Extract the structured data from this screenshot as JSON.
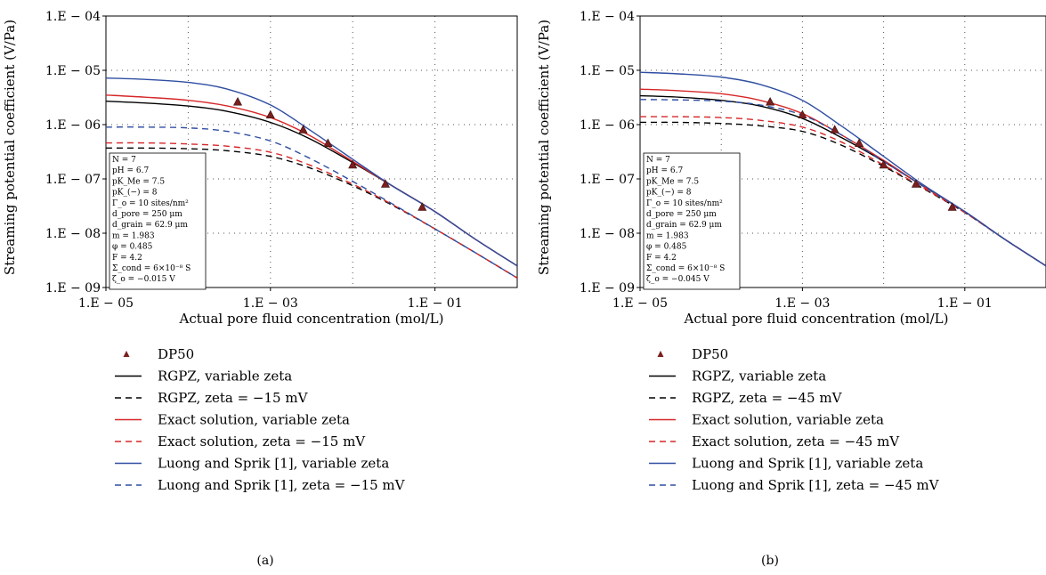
{
  "chart_data": [
    {
      "type": "line",
      "panel_label": "(a)",
      "xlabel": "Actual pore fluid concentration (mol/L)",
      "ylabel": "Streaming potential coefficient (V/Pa)",
      "x_scale": "log",
      "y_scale": "log",
      "xlim": [
        1e-05,
        1
      ],
      "ylim": [
        1e-09,
        0.0001
      ],
      "grid": "dotted",
      "x_ticks": [
        {
          "value": 1e-05,
          "label": "1.E − 05"
        },
        {
          "value": 0.001,
          "label": "1.E − 03"
        },
        {
          "value": 0.1,
          "label": "1.E − 01"
        }
      ],
      "y_ticks": [
        {
          "value": 1e-09,
          "label": "1.E − 09"
        },
        {
          "value": 1e-08,
          "label": "1.E − 08"
        },
        {
          "value": 1e-07,
          "label": "1.E − 07"
        },
        {
          "value": 1e-06,
          "label": "1.E − 06"
        },
        {
          "value": 1e-05,
          "label": "1.E − 05"
        },
        {
          "value": 0.0001,
          "label": "1.E − 04"
        }
      ],
      "info_box": [
        "N = 7",
        "pH = 6.7",
        "pK_Me = 7.5",
        "pK_(−) = 8",
        "Γ_o = 10 sites/nm²",
        "d_pore = 250 μm",
        "d_grain = 62.9 μm",
        "m = 1.983",
        "φ = 0.485",
        "F = 4.2",
        "Σ_cond = 6×10⁻⁸ S",
        "ζ_o = −0.015 V"
      ],
      "legend_position": "below",
      "series": [
        {
          "name": "DP50",
          "kind": "marker",
          "color": "#7a1f1f",
          "x": [
            0.0004,
            0.001,
            0.0025,
            0.005,
            0.01,
            0.025,
            0.07
          ],
          "y": [
            2.6e-06,
            1.5e-06,
            8e-07,
            4.5e-07,
            1.8e-07,
            8e-08,
            3e-08
          ]
        },
        {
          "name": "RGPZ, variable zeta",
          "kind": "line",
          "dash": "solid",
          "color": "#000000",
          "x": [
            1e-05,
            3e-05,
            0.0001,
            0.0003,
            0.001,
            0.003,
            0.01,
            0.03,
            0.1,
            0.3,
            1
          ],
          "y": [
            2.7e-06,
            2.5e-06,
            2.2e-06,
            1.75e-06,
            1.1e-06,
            5.5e-07,
            2e-07,
            7.5e-08,
            2.5e-08,
            8e-09,
            2.5e-09
          ]
        },
        {
          "name": "RGPZ, zeta = −15 mV",
          "kind": "line",
          "dash": "dashed",
          "color": "#000000",
          "x": [
            1e-05,
            3e-05,
            0.0001,
            0.0003,
            0.001,
            0.003,
            0.01,
            0.03,
            0.1,
            0.3,
            1
          ],
          "y": [
            3.7e-07,
            3.7e-07,
            3.6e-07,
            3.3e-07,
            2.6e-07,
            1.6e-07,
            7.5e-08,
            3.3e-08,
            1.2e-08,
            4.5e-09,
            1.5e-09
          ]
        },
        {
          "name": "Exact solution, variable zeta",
          "kind": "line",
          "dash": "solid",
          "color": "#d62728",
          "x": [
            1e-05,
            3e-05,
            0.0001,
            0.0003,
            0.001,
            0.003,
            0.01,
            0.03,
            0.1,
            0.3,
            1
          ],
          "y": [
            3.5e-06,
            3.2e-06,
            2.8e-06,
            2.2e-06,
            1.35e-06,
            6.3e-07,
            2.1e-07,
            7.5e-08,
            2.5e-08,
            8e-09,
            2.5e-09
          ]
        },
        {
          "name": "Exact solution, zeta = −15 mV",
          "kind": "line",
          "dash": "dashed",
          "color": "#d62728",
          "x": [
            1e-05,
            3e-05,
            0.0001,
            0.0003,
            0.001,
            0.003,
            0.01,
            0.03,
            0.1,
            0.3,
            1
          ],
          "y": [
            4.6e-07,
            4.6e-07,
            4.4e-07,
            4e-07,
            3.1e-07,
            1.8e-07,
            8e-08,
            3.4e-08,
            1.2e-08,
            4.5e-09,
            1.5e-09
          ]
        },
        {
          "name": "Luong and Sprik [1], variable zeta",
          "kind": "line",
          "dash": "solid",
          "color": "#2f4ea1",
          "x": [
            1e-05,
            3e-05,
            0.0001,
            0.0003,
            0.001,
            0.003,
            0.01,
            0.03,
            0.1,
            0.3,
            1
          ],
          "y": [
            7.2e-06,
            6.8e-06,
            6e-06,
            4.5e-06,
            2.3e-06,
            8e-07,
            2.3e-07,
            7.5e-08,
            2.5e-08,
            8e-09,
            2.5e-09
          ]
        },
        {
          "name": "Luong and Sprik [1], zeta = −15 mV",
          "kind": "line",
          "dash": "dashed",
          "color": "#2f4ea1",
          "x": [
            1e-05,
            3e-05,
            0.0001,
            0.0003,
            0.001,
            0.003,
            0.01,
            0.03,
            0.1,
            0.3,
            1
          ],
          "y": [
            9e-07,
            9e-07,
            8.7e-07,
            7.5e-07,
            5e-07,
            2.4e-07,
            9e-08,
            3.5e-08,
            1.2e-08,
            4.5e-09,
            1.5e-09
          ]
        }
      ]
    },
    {
      "type": "line",
      "panel_label": "(b)",
      "xlabel": "Actual pore fluid concentration (mol/L)",
      "ylabel": "Streaming potential coefficient (V/Pa)",
      "x_scale": "log",
      "y_scale": "log",
      "xlim": [
        1e-05,
        1
      ],
      "ylim": [
        1e-09,
        0.0001
      ],
      "grid": "dotted",
      "x_ticks": [
        {
          "value": 1e-05,
          "label": "1.E − 05"
        },
        {
          "value": 0.001,
          "label": "1.E − 03"
        },
        {
          "value": 0.1,
          "label": "1.E − 01"
        }
      ],
      "y_ticks": [
        {
          "value": 1e-09,
          "label": "1.E − 09"
        },
        {
          "value": 1e-08,
          "label": "1.E − 08"
        },
        {
          "value": 1e-07,
          "label": "1.E − 07"
        },
        {
          "value": 1e-06,
          "label": "1.E − 06"
        },
        {
          "value": 1e-05,
          "label": "1.E − 05"
        },
        {
          "value": 0.0001,
          "label": "1.E − 04"
        }
      ],
      "info_box": [
        "N = 7",
        "pH = 6.7",
        "pK_Me = 7.5",
        "pK_(−) = 8",
        "Γ_o = 10 sites/nm²",
        "d_pore = 250 μm",
        "d_grain = 62.9 μm",
        "m = 1.983",
        "φ = 0.485",
        "F = 4.2",
        "Σ_cond = 6×10⁻⁸ S",
        "ζ_o = −0.045 V"
      ],
      "legend_position": "below",
      "series": [
        {
          "name": "DP50",
          "kind": "marker",
          "color": "#7a1f1f",
          "x": [
            0.0004,
            0.001,
            0.0025,
            0.005,
            0.01,
            0.025,
            0.07
          ],
          "y": [
            2.6e-06,
            1.5e-06,
            8e-07,
            4.5e-07,
            1.8e-07,
            8e-08,
            3e-08
          ]
        },
        {
          "name": "RGPZ, variable zeta",
          "kind": "line",
          "dash": "solid",
          "color": "#000000",
          "x": [
            1e-05,
            3e-05,
            0.0001,
            0.0003,
            0.001,
            0.003,
            0.01,
            0.03,
            0.1,
            0.3,
            1
          ],
          "y": [
            3.4e-06,
            3.2e-06,
            2.8e-06,
            2.2e-06,
            1.3e-06,
            5.8e-07,
            2.1e-07,
            7.5e-08,
            2.5e-08,
            8e-09,
            2.5e-09
          ]
        },
        {
          "name": "RGPZ, zeta = −45 mV",
          "kind": "line",
          "dash": "dashed",
          "color": "#000000",
          "x": [
            1e-05,
            3e-05,
            0.0001,
            0.0003,
            0.001,
            0.003,
            0.01,
            0.03,
            0.1,
            0.3,
            1
          ],
          "y": [
            1.1e-06,
            1.1e-06,
            1.05e-06,
            9.5e-07,
            7.5e-07,
            4.2e-07,
            1.7e-07,
            6.8e-08,
            2.4e-08,
            8e-09,
            2.5e-09
          ]
        },
        {
          "name": "Exact solution, variable zeta",
          "kind": "line",
          "dash": "solid",
          "color": "#d62728",
          "x": [
            1e-05,
            3e-05,
            0.0001,
            0.0003,
            0.001,
            0.003,
            0.01,
            0.03,
            0.1,
            0.3,
            1
          ],
          "y": [
            4.5e-06,
            4.2e-06,
            3.7e-06,
            2.8e-06,
            1.6e-06,
            6.5e-07,
            2.2e-07,
            7.5e-08,
            2.5e-08,
            8e-09,
            2.5e-09
          ]
        },
        {
          "name": "Exact solution, zeta = −45 mV",
          "kind": "line",
          "dash": "dashed",
          "color": "#d62728",
          "x": [
            1e-05,
            3e-05,
            0.0001,
            0.0003,
            0.001,
            0.003,
            0.01,
            0.03,
            0.1,
            0.3,
            1
          ],
          "y": [
            1.4e-06,
            1.4e-06,
            1.35e-06,
            1.2e-06,
            9e-07,
            4.8e-07,
            1.8e-07,
            7e-08,
            2.4e-08,
            8e-09,
            2.5e-09
          ]
        },
        {
          "name": "Luong and Sprik [1], variable zeta",
          "kind": "line",
          "dash": "solid",
          "color": "#2f4ea1",
          "x": [
            1e-05,
            3e-05,
            0.0001,
            0.0003,
            0.001,
            0.003,
            0.01,
            0.03,
            0.1,
            0.3,
            1
          ],
          "y": [
            9.2e-06,
            8.6e-06,
            7.5e-06,
            5.5e-06,
            2.8e-06,
            9.5e-07,
            2.6e-07,
            8e-08,
            2.5e-08,
            8e-09,
            2.5e-09
          ]
        },
        {
          "name": "Luong and Sprik [1], zeta = −45 mV",
          "kind": "line",
          "dash": "dashed",
          "color": "#2f4ea1",
          "x": [
            1e-05,
            3e-05,
            0.0001,
            0.0003,
            0.001,
            0.003,
            0.01,
            0.03,
            0.1,
            0.3,
            1
          ],
          "y": [
            2.9e-06,
            2.85e-06,
            2.7e-06,
            2.3e-06,
            1.5e-06,
            6.5e-07,
            2.1e-07,
            7.5e-08,
            2.5e-08,
            8e-09,
            2.5e-09
          ]
        }
      ]
    }
  ]
}
